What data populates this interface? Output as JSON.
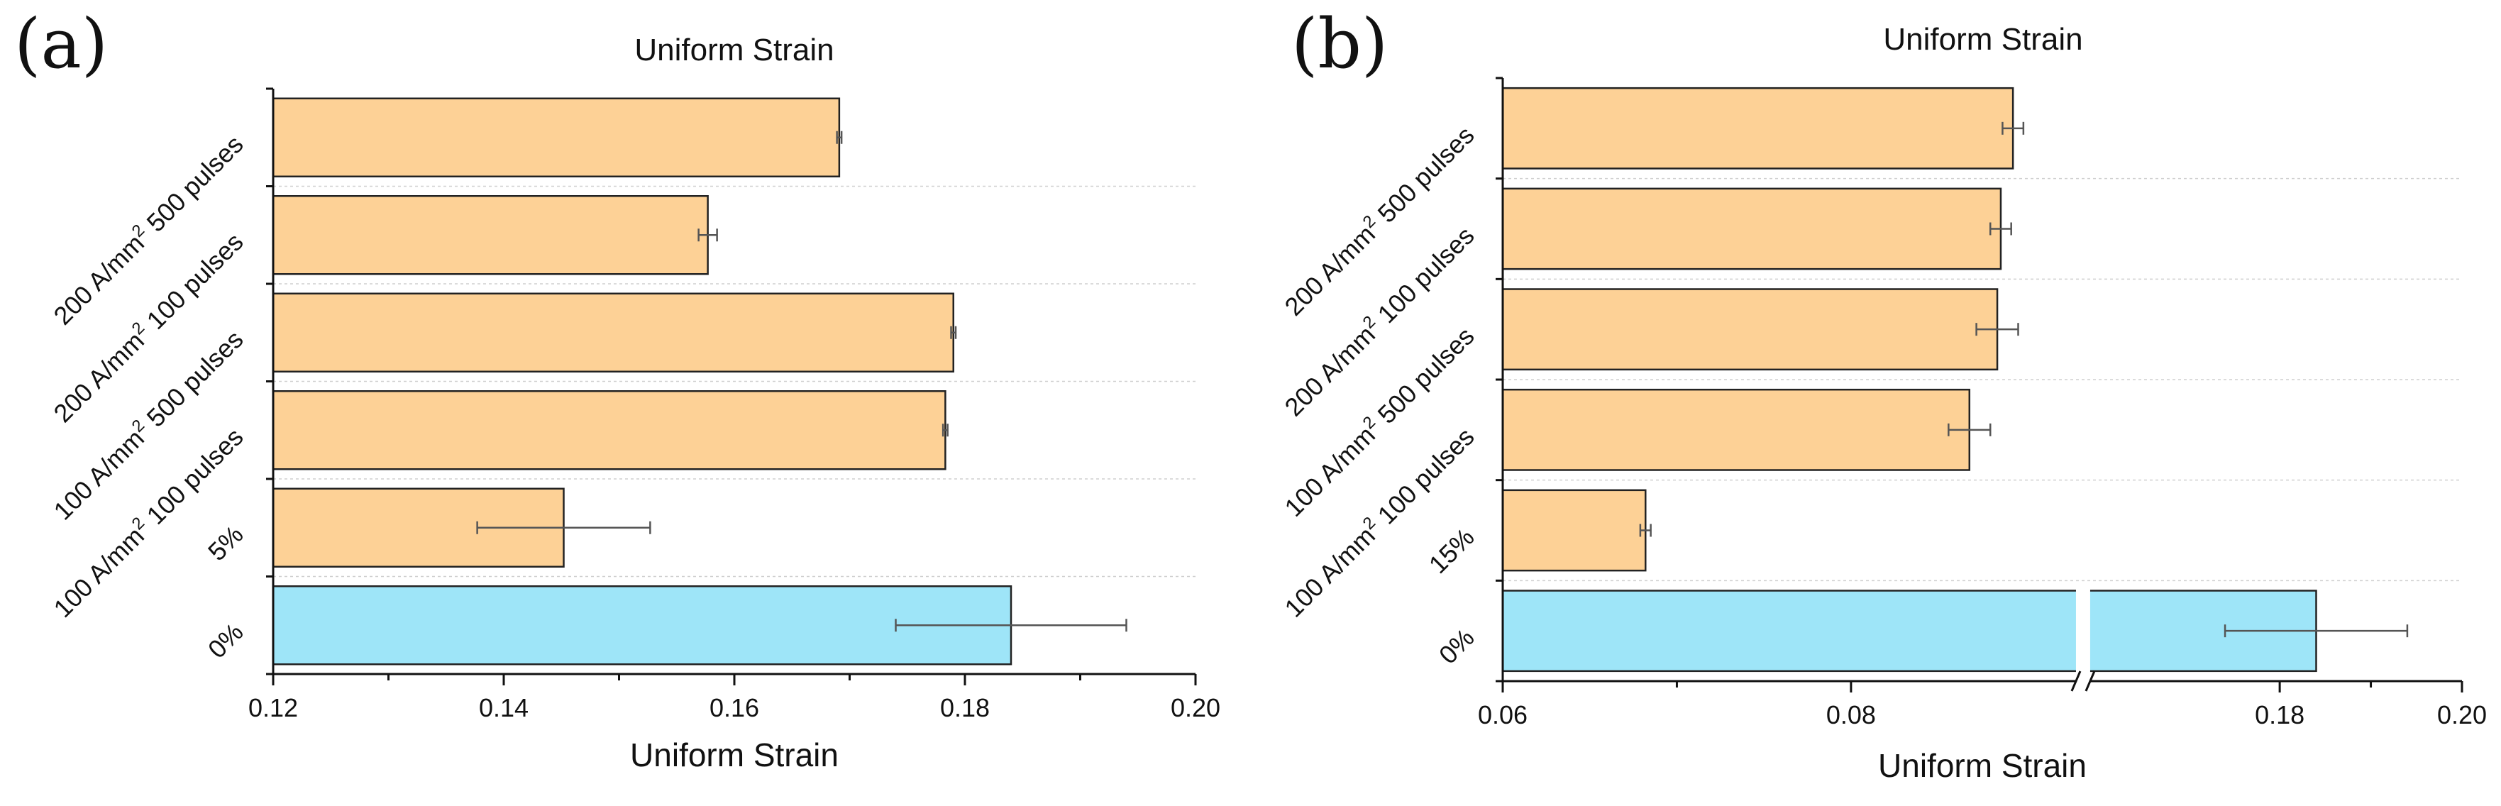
{
  "chart_data": [
    {
      "type": "bar",
      "orientation": "horizontal",
      "panel_label": "(a)",
      "title": "Uniform Strain",
      "xlabel": "Uniform Strain",
      "ylabel": "",
      "xlim": [
        0.12,
        0.2
      ],
      "xticks": [
        0.12,
        0.14,
        0.16,
        0.18,
        0.2
      ],
      "xtick_labels": [
        "0.12",
        "0.14",
        "0.16",
        "0.18",
        "0.20"
      ],
      "axis_break": null,
      "categories": [
        {
          "main": "0%",
          "sup": "",
          "rest": ""
        },
        {
          "main": "5%",
          "sup": "",
          "rest": ""
        },
        {
          "main": "100 A/mm",
          "sup": "2",
          "rest": " 100 pulses"
        },
        {
          "main": "100 A/mm",
          "sup": "2",
          "rest": " 500 pulses"
        },
        {
          "main": "200 A/mm",
          "sup": "2",
          "rest": " 100 pulses"
        },
        {
          "main": "200 A/mm",
          "sup": "2",
          "rest": " 500 pulses"
        }
      ],
      "values": [
        0.184,
        0.1452,
        0.1783,
        0.179,
        0.1577,
        0.1691
      ],
      "errors": [
        0.01,
        0.0075,
        0.0002,
        0.0002,
        0.0008,
        0.0002
      ],
      "colors": [
        "#9ee5f8",
        "#fdd196",
        "#fdd196",
        "#fdd196",
        "#fdd196",
        "#fdd196"
      ]
    },
    {
      "type": "bar",
      "orientation": "horizontal",
      "panel_label": "(b)",
      "title": "Uniform Strain",
      "xlabel": "Uniform Strain",
      "ylabel": "",
      "xlim": [
        0.06,
        0.2
      ],
      "xticks": [
        0.06,
        0.08,
        0.18,
        0.2
      ],
      "xtick_labels": [
        "0.06",
        "0.08",
        "0.18",
        "0.20"
      ],
      "axis_break": {
        "segments": [
          [
            0.06,
            0.0925
          ],
          [
            0.16,
            0.2
          ]
        ]
      },
      "categories": [
        {
          "main": "0%",
          "sup": "",
          "rest": ""
        },
        {
          "main": "15%",
          "sup": "",
          "rest": ""
        },
        {
          "main": "100 A/mm",
          "sup": "2",
          "rest": " 100 pulses"
        },
        {
          "main": "100 A/mm",
          "sup": "2",
          "rest": " 500 pulses"
        },
        {
          "main": "200 A/mm",
          "sup": "2",
          "rest": " 100 pulses"
        },
        {
          "main": "200 A/mm",
          "sup": "2",
          "rest": " 500 pulses"
        }
      ],
      "values": [
        0.184,
        0.0682,
        0.0868,
        0.0884,
        0.0886,
        0.0893
      ],
      "errors": [
        0.01,
        0.0003,
        0.0012,
        0.0012,
        0.0006,
        0.0006
      ],
      "colors": [
        "#9ee5f8",
        "#fdd196",
        "#fdd196",
        "#fdd196",
        "#fdd196",
        "#fdd196"
      ]
    }
  ]
}
